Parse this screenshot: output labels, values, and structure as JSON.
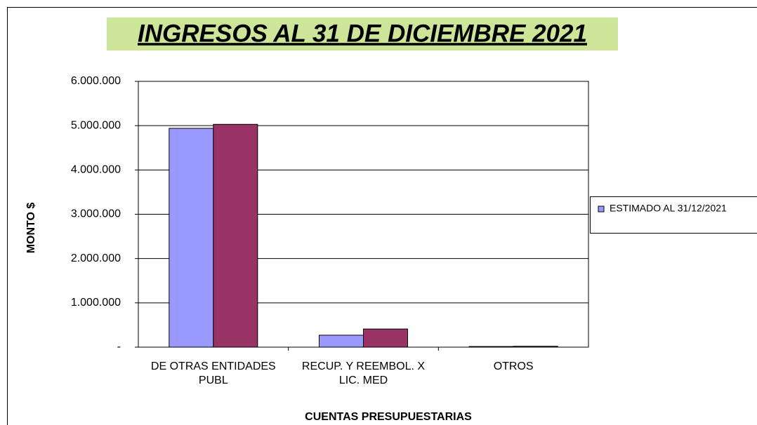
{
  "chart_data": {
    "type": "bar",
    "title": "INGRESOS AL 31 DE  DICIEMBRE 2021",
    "y_label": "MONTO $",
    "x_label": "CUENTAS PRESUPUESTARIAS",
    "categories": [
      "DE OTRAS ENTIDADES PUBL",
      "RECUP. Y REEMBOL. X LIC. MED",
      "OTROS"
    ],
    "series": [
      {
        "name": "ESTIMADO AL 31/12/2021",
        "color": "#9999ff",
        "values": [
          4940000,
          270000,
          15000
        ]
      },
      {
        "color": "#993366",
        "values": [
          5030000,
          410000,
          20000
        ]
      }
    ],
    "ylim": [
      0,
      6000000
    ],
    "yticks": [
      {
        "value": 0,
        "label": "-"
      },
      {
        "value": 1000000,
        "label": "1.000.000"
      },
      {
        "value": 2000000,
        "label": "2.000.000"
      },
      {
        "value": 3000000,
        "label": "3.000.000"
      },
      {
        "value": 4000000,
        "label": "4.000.000"
      },
      {
        "value": 5000000,
        "label": "5.000.000"
      },
      {
        "value": 6000000,
        "label": "6.000.000"
      }
    ],
    "grid": true,
    "legend": "right"
  }
}
